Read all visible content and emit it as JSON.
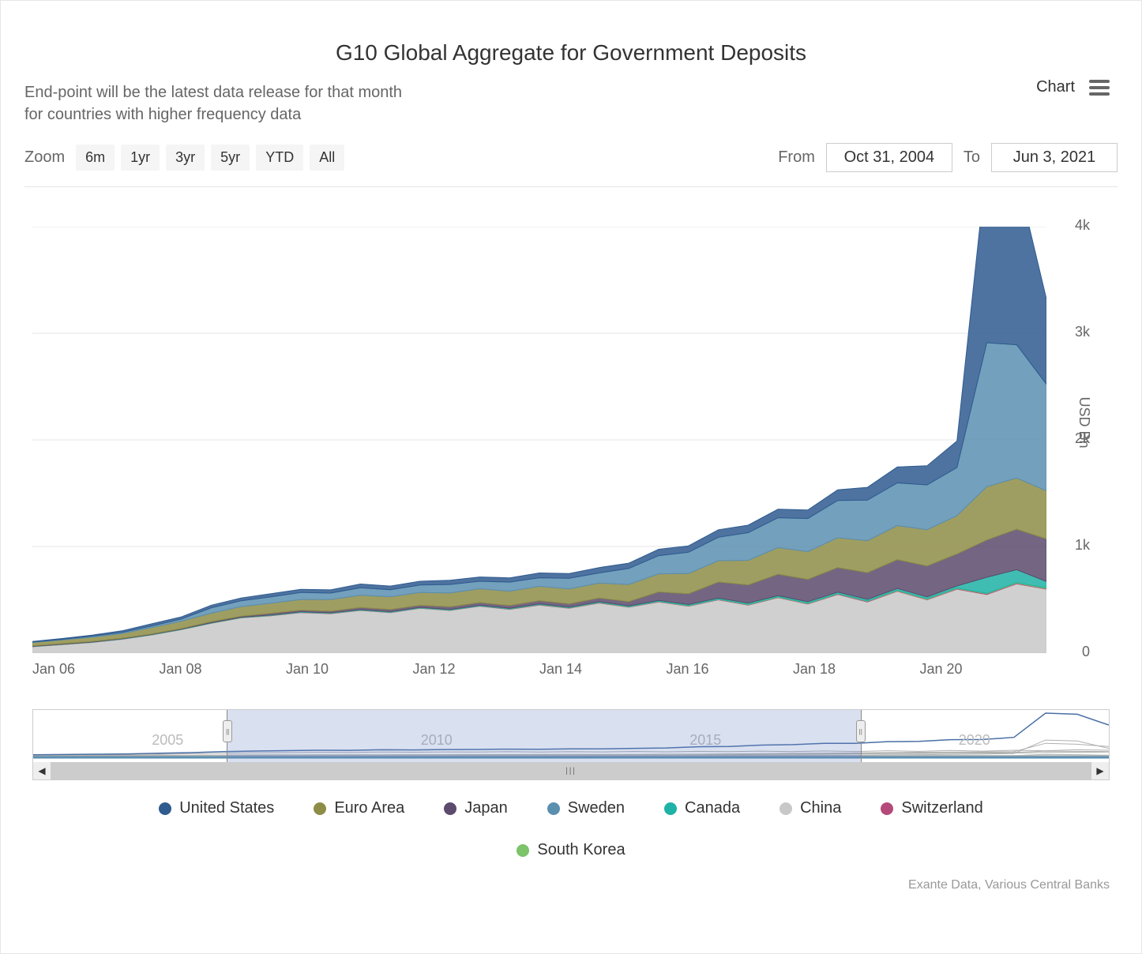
{
  "title": "G10 Global Aggregate for Government Deposits",
  "subtitle_line1": "End-point will be the latest data release for that month",
  "subtitle_line2": "for countries with higher frequency data",
  "top_right_label": "Chart",
  "zoom": {
    "label": "Zoom",
    "buttons": [
      "6m",
      "1yr",
      "3yr",
      "5yr",
      "YTD",
      "All"
    ]
  },
  "date_range": {
    "from_label": "From",
    "to_label": "To",
    "from": "Oct 31, 2004",
    "to": "Jun 3, 2021"
  },
  "chart": {
    "type": "area-stacked",
    "y_axis_title": "USD Bn",
    "ylim": [
      0,
      4000
    ],
    "yticks": [
      0,
      1000,
      2000,
      3000,
      4000
    ],
    "ytick_labels": [
      "0",
      "1k",
      "2k",
      "3k",
      "4k"
    ],
    "x_ticks": [
      "Jan 06",
      "Jan 08",
      "Jan 10",
      "Jan 12",
      "Jan 14",
      "Jan 16",
      "Jan 18",
      "Jan 20"
    ],
    "grid_color": "#e6e6e6",
    "background": "#ffffff",
    "tick_fontsize": 18,
    "tick_color": "#666666",
    "series": [
      {
        "name": "United States",
        "color": "#2f5b8f",
        "values": [
          5,
          8,
          10,
          15,
          20,
          20,
          25,
          25,
          30,
          30,
          30,
          35,
          35,
          35,
          40,
          40,
          40,
          45,
          45,
          50,
          50,
          60,
          60,
          70,
          70,
          80,
          80,
          100,
          120,
          150,
          180,
          250,
          1700,
          1600,
          800
        ]
      },
      {
        "name": "Euro Area",
        "color": "#8e8d47",
        "values": [
          30,
          35,
          40,
          45,
          60,
          70,
          80,
          90,
          95,
          100,
          110,
          115,
          120,
          120,
          130,
          130,
          135,
          135,
          140,
          140,
          160,
          170,
          190,
          200,
          230,
          250,
          260,
          280,
          300,
          320,
          340,
          360,
          500,
          480,
          450
        ]
      },
      {
        "name": "Japan",
        "color": "#5c4b6c",
        "values": [
          5,
          5,
          5,
          5,
          5,
          5,
          10,
          10,
          15,
          15,
          15,
          20,
          20,
          20,
          25,
          25,
          25,
          30,
          30,
          35,
          40,
          80,
          100,
          150,
          170,
          200,
          210,
          230,
          250,
          270,
          290,
          300,
          350,
          380,
          400
        ]
      },
      {
        "name": "Sweden",
        "color": "#5b8fb0",
        "values": [
          5,
          5,
          10,
          10,
          15,
          20,
          50,
          55,
          60,
          65,
          60,
          70,
          65,
          70,
          80,
          70,
          85,
          80,
          100,
          95,
          150,
          170,
          200,
          220,
          260,
          280,
          310,
          350,
          380,
          400,
          420,
          450,
          1350,
          1250,
          1000
        ]
      },
      {
        "name": "Canada",
        "color": "#1fb2a6",
        "values": [
          2,
          2,
          2,
          2,
          3,
          3,
          3,
          3,
          4,
          4,
          4,
          4,
          5,
          5,
          5,
          5,
          6,
          6,
          6,
          6,
          8,
          8,
          10,
          10,
          12,
          12,
          14,
          14,
          16,
          16,
          18,
          20,
          150,
          120,
          60
        ]
      },
      {
        "name": "China",
        "color": "#c8c8c8",
        "values": [
          60,
          80,
          100,
          130,
          170,
          220,
          280,
          330,
          350,
          380,
          370,
          400,
          380,
          420,
          400,
          440,
          410,
          450,
          420,
          470,
          430,
          480,
          440,
          500,
          450,
          520,
          460,
          550,
          480,
          580,
          500,
          600,
          550,
          650,
          600
        ]
      },
      {
        "name": "Switzerland",
        "color": "#b44a7a",
        "values": [
          1,
          1,
          1,
          1,
          1,
          1,
          1,
          2,
          2,
          2,
          2,
          2,
          2,
          2,
          2,
          2,
          3,
          3,
          3,
          3,
          3,
          3,
          3,
          4,
          4,
          4,
          4,
          4,
          5,
          5,
          5,
          5,
          6,
          6,
          6
        ]
      },
      {
        "name": "South Korea",
        "color": "#7cc36a",
        "values": [
          1,
          1,
          1,
          1,
          1,
          1,
          1,
          1,
          2,
          2,
          2,
          2,
          2,
          2,
          2,
          2,
          2,
          3,
          3,
          3,
          3,
          3,
          3,
          3,
          4,
          4,
          4,
          4,
          4,
          5,
          5,
          5,
          5,
          6,
          6
        ]
      }
    ]
  },
  "navigator": {
    "years": [
      "2005",
      "2010",
      "2015",
      "2020"
    ],
    "selection_start_pct": 18,
    "selection_end_pct": 77
  },
  "legend": [
    {
      "label": "United States",
      "color": "#2f5b8f"
    },
    {
      "label": "Euro Area",
      "color": "#8e8d47"
    },
    {
      "label": "Japan",
      "color": "#5c4b6c"
    },
    {
      "label": "Sweden",
      "color": "#5b8fb0"
    },
    {
      "label": "Canada",
      "color": "#1fb2a6"
    },
    {
      "label": "China",
      "color": "#c8c8c8"
    },
    {
      "label": "Switzerland",
      "color": "#b44a7a"
    },
    {
      "label": "South Korea",
      "color": "#7cc36a"
    }
  ],
  "credit": "Exante Data, Various Central Banks"
}
